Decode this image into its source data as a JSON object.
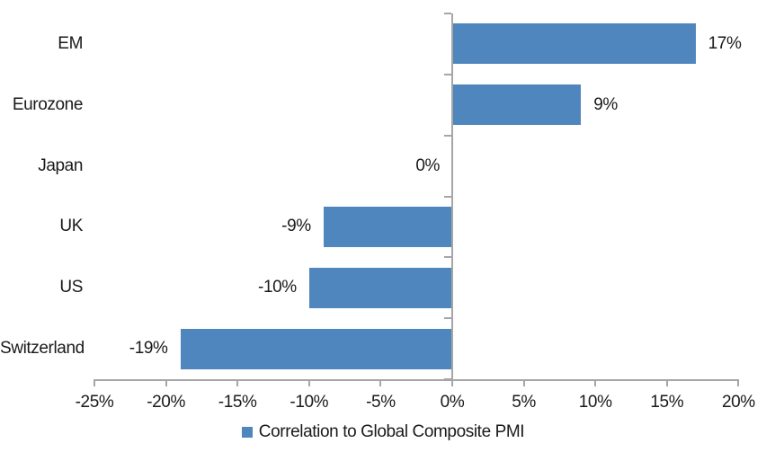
{
  "chart_data": {
    "type": "bar",
    "orientation": "horizontal",
    "title": "",
    "categories": [
      "EM",
      "Eurozone",
      "Japan",
      "UK",
      "US",
      "Switzerland"
    ],
    "values": [
      17,
      9,
      0,
      -9,
      -10,
      -19
    ],
    "data_labels": [
      "17%",
      "9%",
      "0%",
      "-9%",
      "-10%",
      "-19%"
    ],
    "x_tick_values": [
      -25,
      -20,
      -15,
      -10,
      -5,
      0,
      5,
      10,
      15,
      20
    ],
    "x_tick_labels": [
      "-25%",
      "-20%",
      "-15%",
      "-10%",
      "-5%",
      "0%",
      "5%",
      "10%",
      "15%",
      "20%"
    ],
    "xlim": [
      -25,
      20
    ],
    "grid": false,
    "legend_position": "bottom",
    "legend": [
      "Correlation to Global Composite PMI"
    ],
    "colors": {
      "bar": "#4F86BD",
      "axis": "#A6A6A6",
      "text": "#1A1A1A",
      "background": "#FFFFFF"
    }
  }
}
